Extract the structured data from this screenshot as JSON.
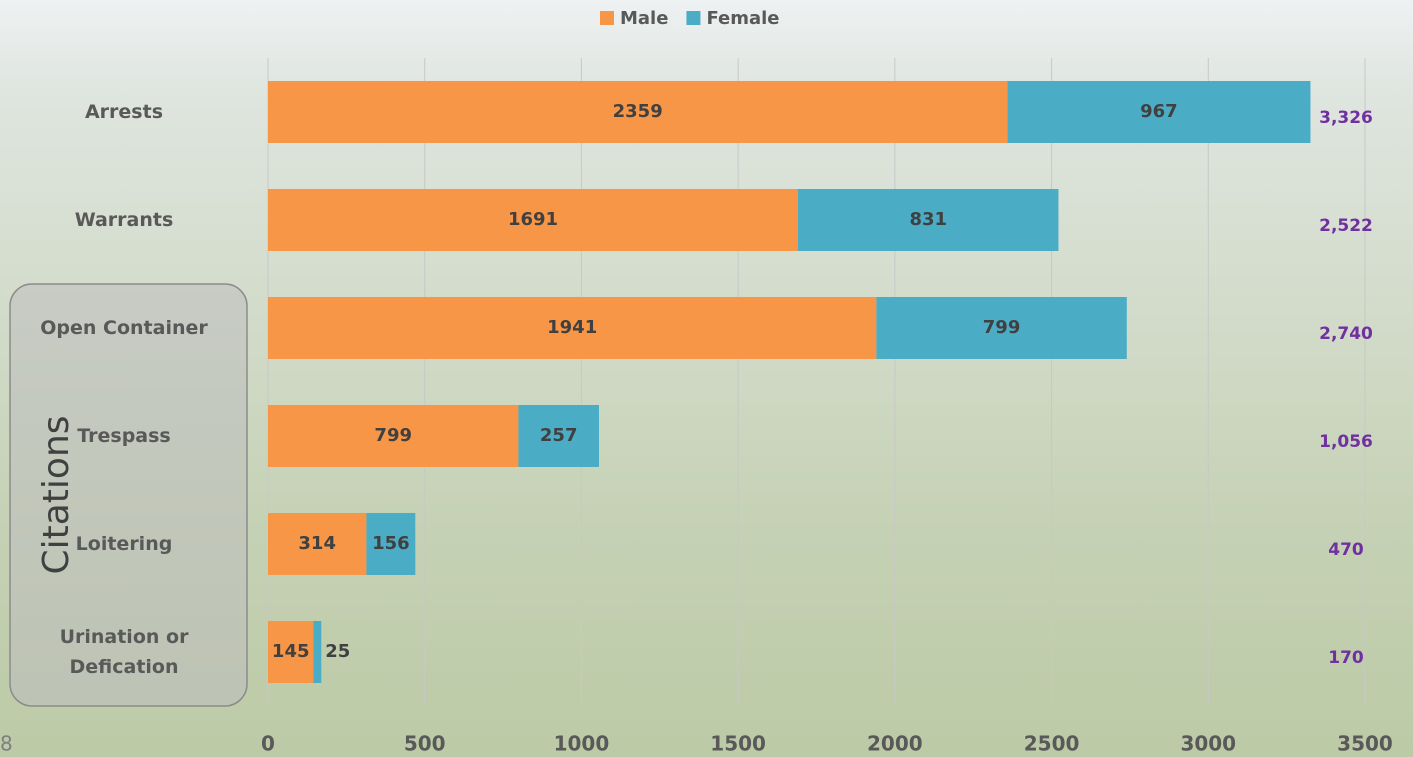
{
  "chart_data": {
    "type": "stacked-bar-horizontal",
    "categories": [
      "Arrests",
      "Warrants",
      "Open Container",
      "Trespass",
      "Loitering",
      "Urination or Defication"
    ],
    "series": [
      {
        "name": "Male",
        "color": "#f79646",
        "values": [
          2359,
          1691,
          1941,
          799,
          314,
          145
        ]
      },
      {
        "name": "Female",
        "color": "#4bacc6",
        "values": [
          967,
          831,
          799,
          257,
          156,
          25
        ]
      }
    ],
    "totals": [
      {
        "value": 3326,
        "label": "3,326"
      },
      {
        "value": 2522,
        "label": "2,522"
      },
      {
        "value": 2740,
        "label": "2,740"
      },
      {
        "value": 1056,
        "label": "1,056"
      },
      {
        "value": 470,
        "label": "470"
      },
      {
        "value": 170,
        "label": "170"
      }
    ],
    "total_color": "#7030a0",
    "xlim": [
      0,
      3500
    ],
    "xticks": [
      0,
      500,
      1000,
      1500,
      2000,
      2500,
      3000,
      3500
    ],
    "grid": true,
    "legend_position": "top",
    "group_label": "Citations",
    "slide_number": "8"
  }
}
